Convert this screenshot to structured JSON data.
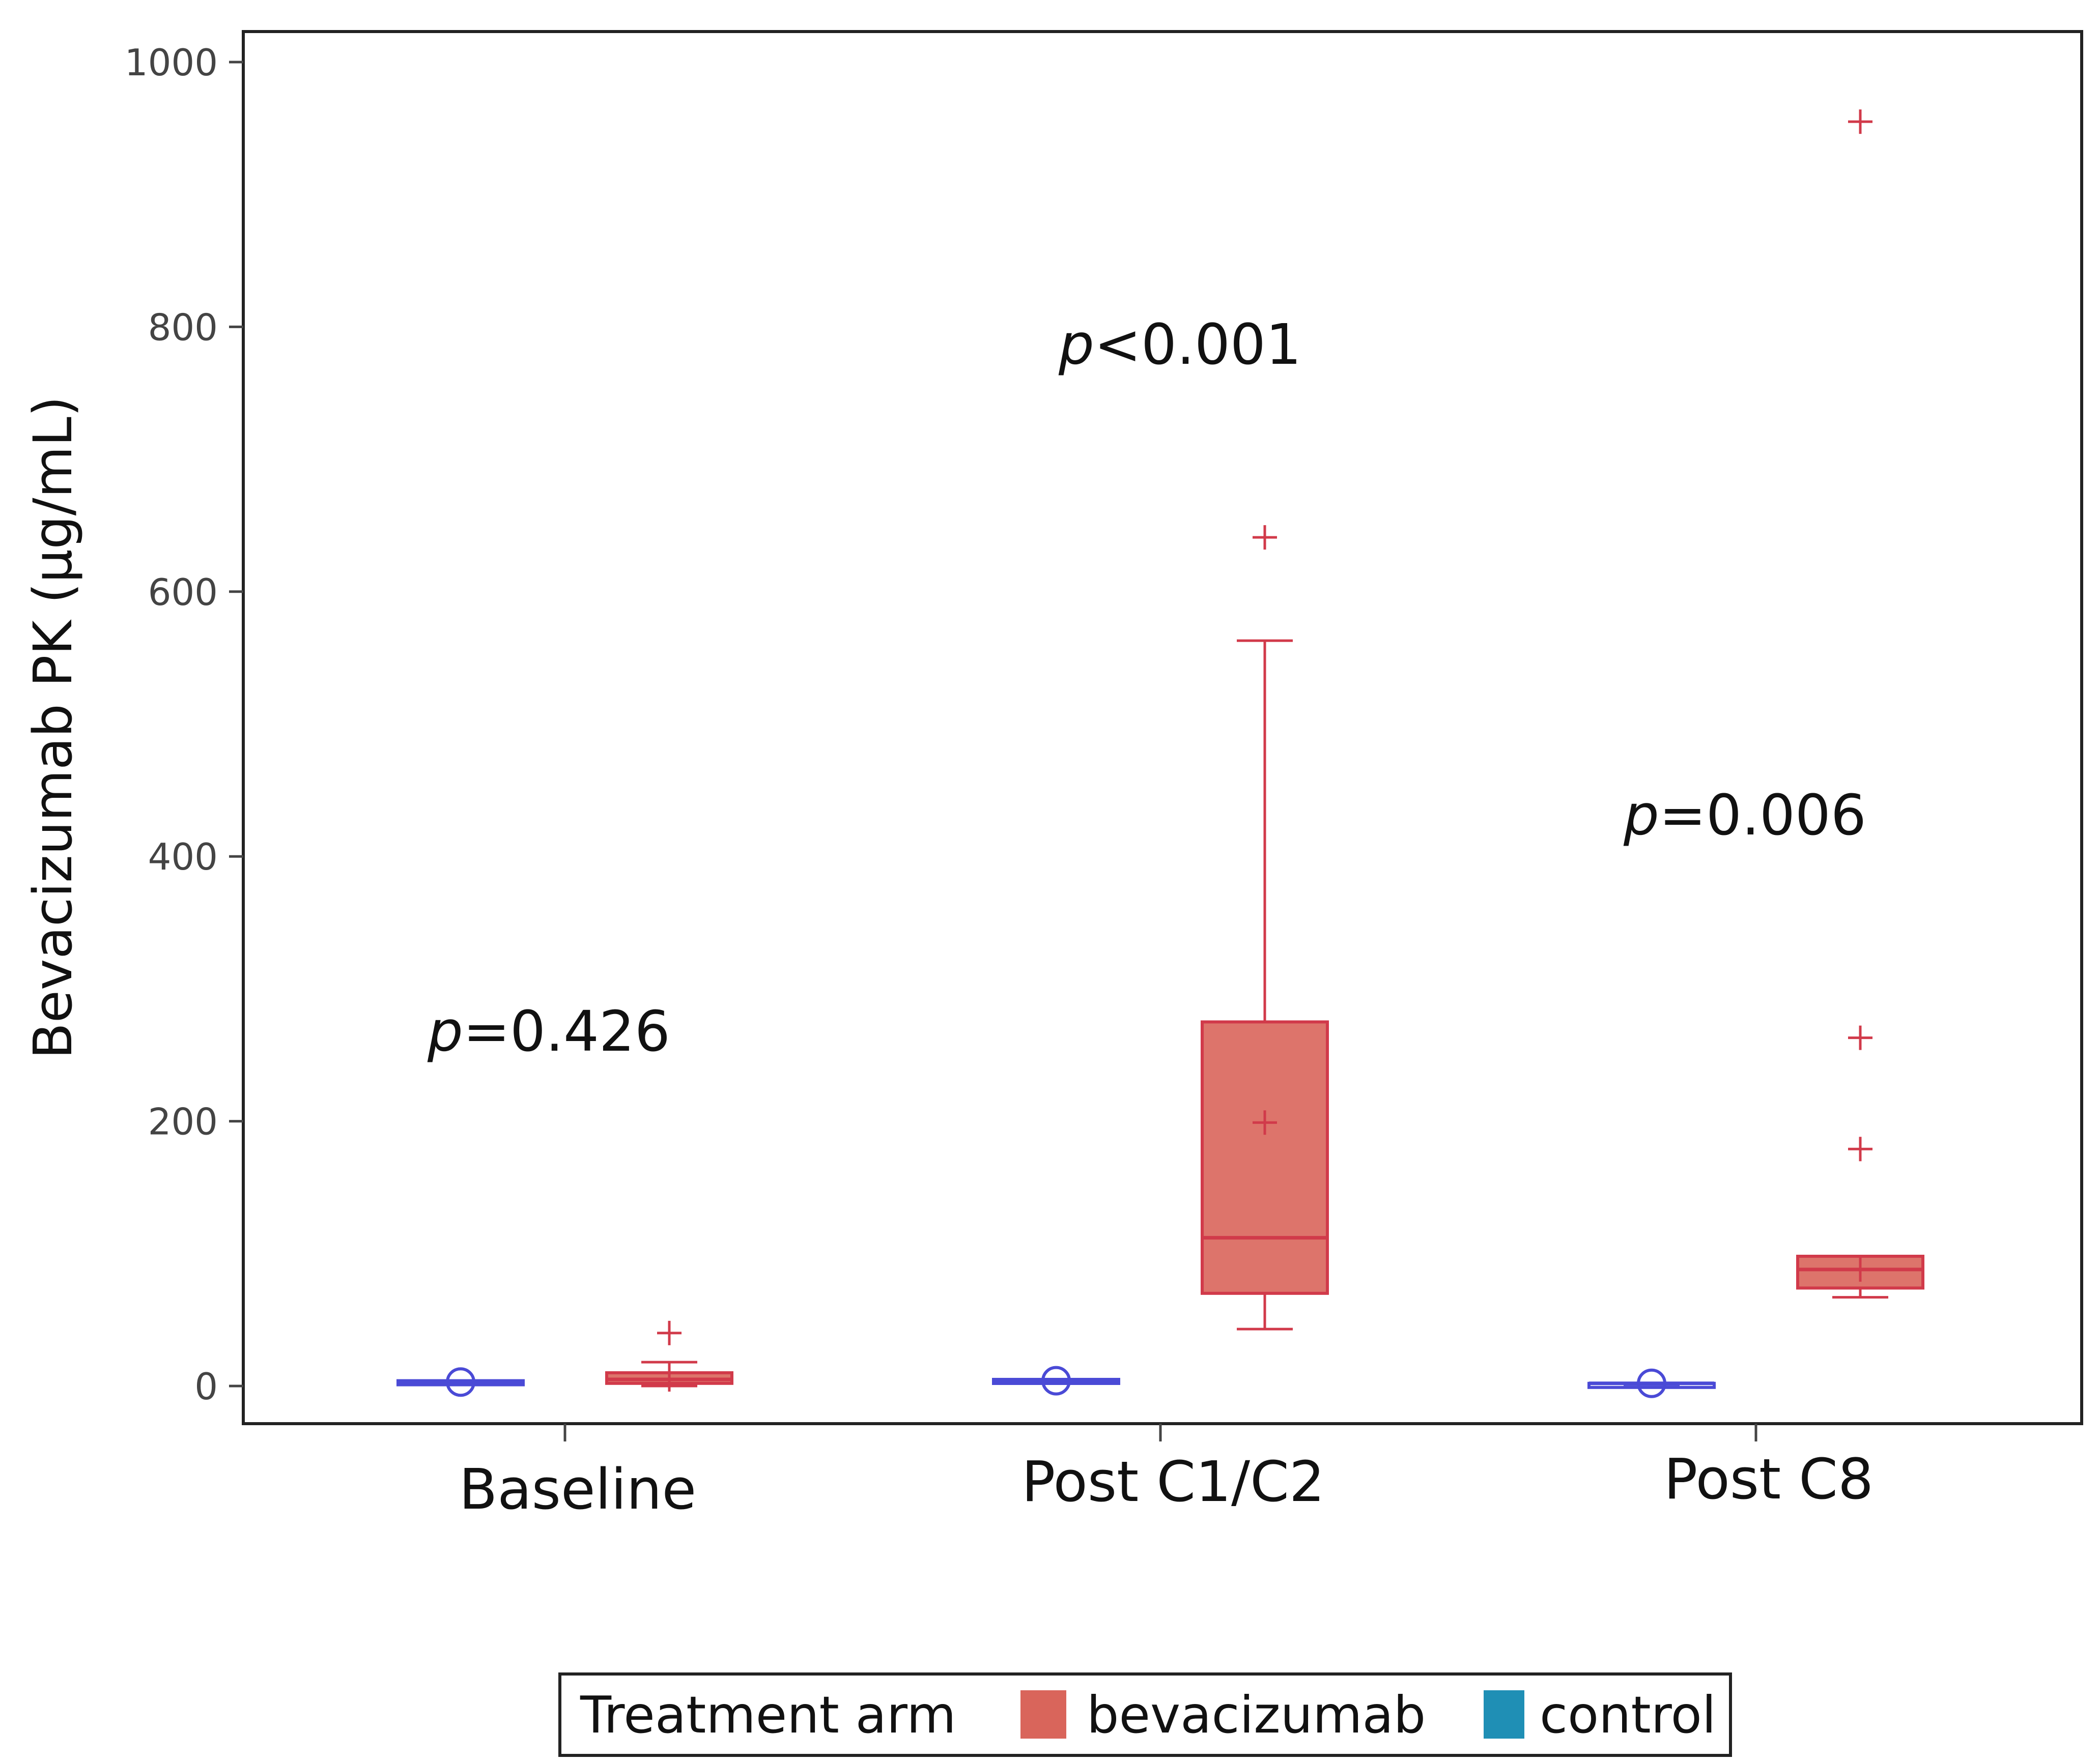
{
  "chart_data": {
    "type": "box",
    "title": "",
    "xlabel": "",
    "ylabel": "Bevacizumab PK (µg/mL)",
    "ylim": [
      -25,
      1025
    ],
    "yticks": [
      0,
      200,
      400,
      600,
      800,
      1000
    ],
    "grid": false,
    "categories": [
      "Baseline",
      "Post C1/C2",
      "Post C8"
    ],
    "annotations": [
      {
        "category": "Baseline",
        "p_symbol": "p",
        "p_rest": "=0.426"
      },
      {
        "category": "Post C1/C2",
        "p_symbol": "p",
        "p_rest": "<0.001"
      },
      {
        "category": "Post C8",
        "p_symbol": "p",
        "p_rest": "=0.006"
      }
    ],
    "series": [
      {
        "name": "control",
        "color": "#1f8fb5",
        "drawn_color": "#4a4ad6",
        "boxes": [
          {
            "category": "Baseline",
            "min": 2,
            "q1": 2,
            "median": 3,
            "q3": 4,
            "max": 4,
            "mean": 3,
            "outliers": []
          },
          {
            "category": "Post C1/C2",
            "min": 3,
            "q1": 3,
            "median": 4,
            "q3": 5,
            "max": 5,
            "mean": 4,
            "outliers": []
          },
          {
            "category": "Post C8",
            "min": 1,
            "q1": 1,
            "median": 2,
            "q3": 2,
            "max": 2,
            "mean": 2,
            "outliers": []
          }
        ]
      },
      {
        "name": "bevacizumab",
        "color": "#d9655b",
        "drawn_color": "#d13a4a",
        "boxes": [
          {
            "category": "Baseline",
            "min": 0,
            "q1": 2,
            "median": 5,
            "q3": 10,
            "max": 18,
            "mean": 5,
            "outliers": [
              40
            ]
          },
          {
            "category": "Post C1/C2",
            "min": 43,
            "q1": 70,
            "median": 112,
            "q3": 275,
            "max": 563,
            "mean": 199,
            "outliers": [
              641
            ]
          },
          {
            "category": "Post C8",
            "min": 67,
            "q1": 74,
            "median": 88,
            "q3": 98,
            "max": 98,
            "mean": 88,
            "outliers": [
              179,
              263,
              955
            ]
          }
        ]
      }
    ],
    "legend": {
      "position": "bottom-center",
      "title": "Treatment arm",
      "entries": [
        {
          "name": "bevacizumab",
          "color": "#d9655b"
        },
        {
          "name": "control",
          "color": "#1f8fb5"
        }
      ]
    }
  }
}
